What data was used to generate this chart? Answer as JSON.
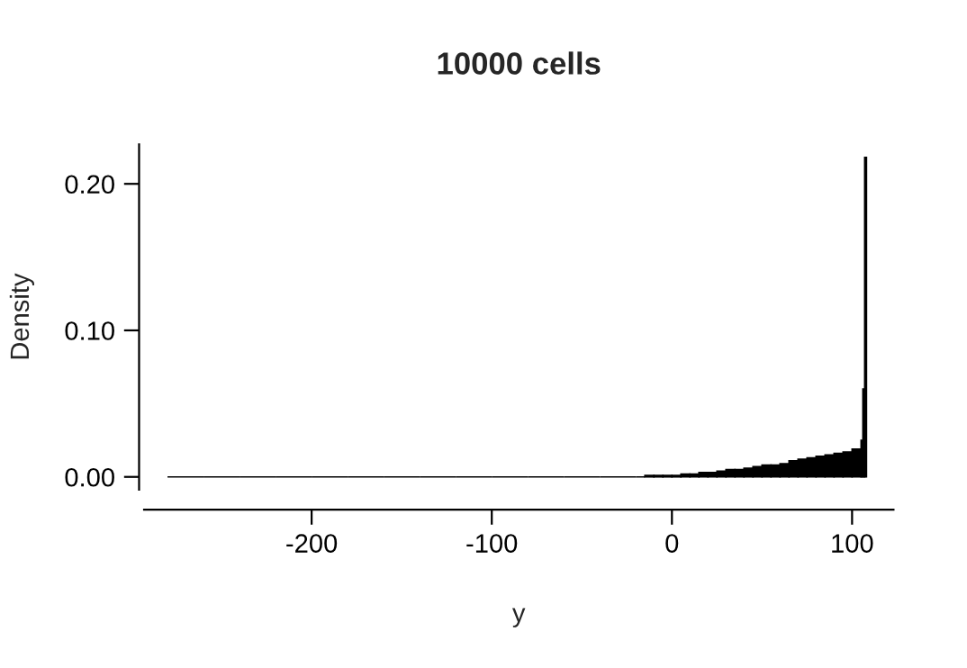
{
  "chart_data": {
    "type": "histogram",
    "title": "10000 cells",
    "xlabel": "y",
    "ylabel": "Density",
    "bins": [
      -280,
      -260,
      -240,
      -220,
      -200,
      -180,
      -160,
      -140,
      -120,
      -100,
      -80,
      -60,
      -40,
      -20,
      -15,
      -10,
      -5,
      0,
      5,
      10,
      15,
      20,
      25,
      30,
      35,
      40,
      45,
      50,
      55,
      60,
      65,
      70,
      75,
      80,
      85,
      90,
      95,
      100,
      105,
      106,
      107,
      108
    ],
    "values": [
      0,
      0,
      0,
      0,
      0,
      0,
      0,
      0,
      0,
      0,
      0,
      0,
      0,
      0,
      0.001,
      0.001,
      0.001,
      0.001,
      0.002,
      0.002,
      0.003,
      0.003,
      0.004,
      0.005,
      0.005,
      0.006,
      0.007,
      0.008,
      0.008,
      0.009,
      0.011,
      0.012,
      0.013,
      0.014,
      0.015,
      0.016,
      0.017,
      0.019,
      0.025,
      0.06,
      0.218
    ],
    "color": "#000000",
    "xlim": [
      -293,
      123
    ],
    "ylim": [
      -0.0087,
      0.227
    ],
    "xticks": [
      -200,
      -100,
      0,
      100
    ],
    "yticks": [
      {
        "value": 0,
        "label": "0.00"
      },
      {
        "value": 0.1,
        "label": "0.10"
      },
      {
        "value": 0.2,
        "label": "0.20"
      }
    ],
    "grid": false
  }
}
